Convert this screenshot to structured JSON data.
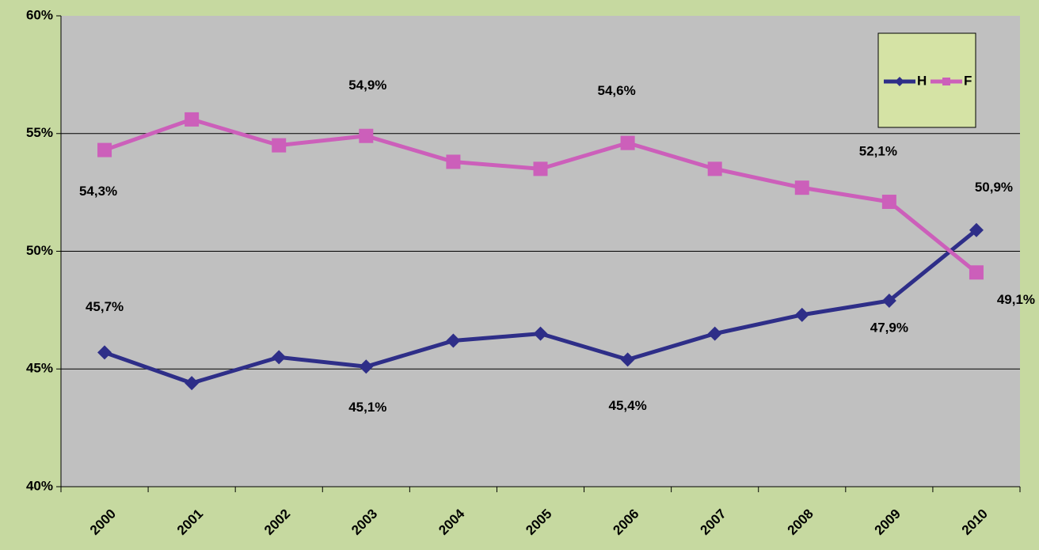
{
  "chart_data": {
    "type": "line",
    "categories": [
      "2000",
      "2001",
      "2002",
      "2003",
      "2004",
      "2005",
      "2006",
      "2007",
      "2008",
      "2009",
      "2010"
    ],
    "series": [
      {
        "name": "H",
        "color": "#2e2e88",
        "marker": "diamond",
        "values": [
          45.7,
          44.4,
          45.5,
          45.1,
          46.2,
          46.5,
          45.4,
          46.5,
          47.3,
          47.9,
          50.9
        ],
        "value_labels": [
          "45,7%",
          null,
          null,
          "45,1%",
          null,
          null,
          "45,4%",
          null,
          null,
          "47,9%",
          "50,9%"
        ]
      },
      {
        "name": "F",
        "color": "#cc5fba",
        "marker": "square",
        "values": [
          54.3,
          55.6,
          54.5,
          54.9,
          53.8,
          53.5,
          54.6,
          53.5,
          52.7,
          52.1,
          49.1
        ],
        "value_labels": [
          "54,3%",
          null,
          null,
          "54,9%",
          null,
          null,
          "54,6%",
          null,
          null,
          "52,1%",
          "49,1%"
        ]
      }
    ],
    "ylim": [
      40,
      60
    ],
    "yticks": [
      {
        "value": 40,
        "label": "40%"
      },
      {
        "value": 45,
        "label": "45%"
      },
      {
        "value": 50,
        "label": "50%"
      },
      {
        "value": 55,
        "label": "55%"
      },
      {
        "value": 60,
        "label": "60%"
      }
    ],
    "grid": true,
    "legend": "top-right"
  }
}
